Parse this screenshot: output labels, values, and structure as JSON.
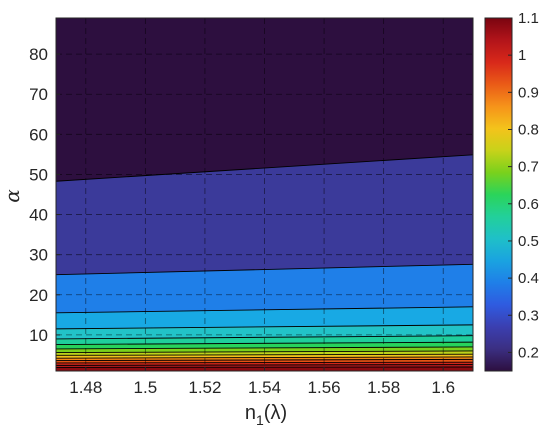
{
  "chart_data": {
    "type": "heatmap",
    "subtype": "filled-contour",
    "title": "",
    "xlabel": "n",
    "xlabel_subscript": "1",
    "xlabel_suffix": "(λ)",
    "ylabel": "α",
    "xlim": [
      1.47,
      1.61
    ],
    "ylim": [
      1,
      89
    ],
    "x_ticks": [
      "1.48",
      "1.5",
      "1.52",
      "1.54",
      "1.56",
      "1.58",
      "1.6"
    ],
    "y_ticks": [
      "10",
      "20",
      "30",
      "40",
      "50",
      "60",
      "70",
      "80"
    ],
    "grid": true,
    "colorbar": {
      "ticks": [
        "0.2",
        "0.3",
        "0.4",
        "0.5",
        "0.6",
        "0.7",
        "0.8",
        "0.9",
        "1",
        "1.1"
      ],
      "range": [
        0.15,
        1.1
      ],
      "colormap": "jet-like"
    },
    "contour_boundaries": [
      {
        "level": 0.2,
        "alpha_at_xmin": 48.3,
        "alpha_at_xmax": 54.9
      },
      {
        "level": 0.3,
        "alpha_at_xmin": 25.0,
        "alpha_at_xmax": 27.6
      },
      {
        "level": 0.35,
        "alpha_at_xmin": 15.5,
        "alpha_at_xmax": 17.0
      },
      {
        "level": 0.4,
        "alpha_at_xmin": 11.5,
        "alpha_at_xmax": 12.5
      },
      {
        "level": 0.45,
        "alpha_at_xmin": 9.0,
        "alpha_at_xmax": 9.8
      },
      {
        "level": 0.5,
        "alpha_at_xmin": 7.6,
        "alpha_at_xmax": 8.2
      },
      {
        "level": 0.55,
        "alpha_at_xmin": 6.5,
        "alpha_at_xmax": 7.0
      },
      {
        "level": 0.6,
        "alpha_at_xmin": 5.6,
        "alpha_at_xmax": 6.0
      },
      {
        "level": 0.65,
        "alpha_at_xmin": 4.9,
        "alpha_at_xmax": 5.2
      },
      {
        "level": 0.7,
        "alpha_at_xmin": 4.2,
        "alpha_at_xmax": 4.5
      },
      {
        "level": 0.8,
        "alpha_at_xmin": 3.6,
        "alpha_at_xmax": 3.9
      },
      {
        "level": 0.9,
        "alpha_at_xmin": 3.0,
        "alpha_at_xmax": 3.2
      },
      {
        "level": 1.0,
        "alpha_at_xmin": 2.4,
        "alpha_at_xmax": 2.6
      },
      {
        "level": 1.1,
        "alpha_at_xmin": 1.9,
        "alpha_at_xmax": 2.0
      }
    ],
    "band_colors": [
      "#2d0f3f",
      "#3b3a9a",
      "#1f7fe8",
      "#18a9e4",
      "#22c3c8",
      "#1fcf9c",
      "#27d35c",
      "#7ad11c",
      "#bdd21a",
      "#f1c21a",
      "#f58a14",
      "#e55314",
      "#d2261a",
      "#b51a1f",
      "#8b0a10"
    ],
    "colorbar_colors": [
      "#2d0f3f",
      "#3b2f82",
      "#3b3fb0",
      "#2f5be0",
      "#1f7fe8",
      "#1aa3e0",
      "#1fc0c8",
      "#22d09a",
      "#2bd45a",
      "#7ad11c",
      "#c8d21a",
      "#f4c31b",
      "#f6931a",
      "#ea5b17",
      "#d8281a",
      "#b2141a",
      "#7a0410"
    ]
  }
}
